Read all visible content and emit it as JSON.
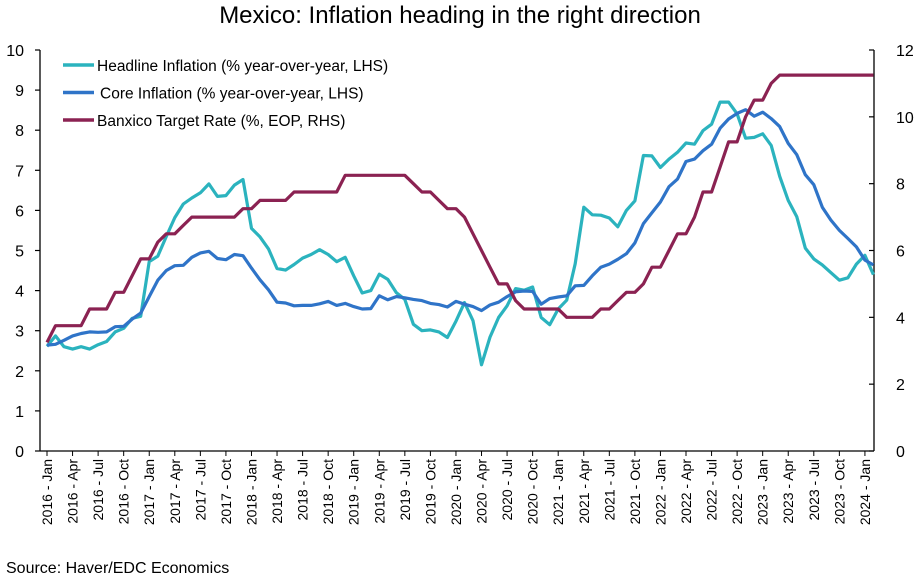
{
  "chart_data": {
    "type": "line",
    "title": "Mexico: Inflation heading in the right direction",
    "source": "Source: Haver/EDC Economics",
    "x_start": "2016-01",
    "x_end": "2024-02",
    "x_frequency": "monthly",
    "x_tick_labels": [
      "2016 - Jan",
      "2016 - Apr",
      "2016 - Jul",
      "2016 - Oct",
      "2017 - Jan",
      "2017 - Apr",
      "2017 - Jul",
      "2017 - Oct",
      "2018 - Jan",
      "2018 - Apr",
      "2018 - Jul",
      "2018 - Oct",
      "2019 - Jan",
      "2019 - Apr",
      "2019 - Jul",
      "2019 - Oct",
      "2020 - Jan",
      "2020 - Apr",
      "2020 - Jul",
      "2020 - Oct",
      "2021 - Jan",
      "2021 - Apr",
      "2021 - Jul",
      "2021 - Oct",
      "2022 - Jan",
      "2022 - Apr",
      "2022 - Jul",
      "2022 - Oct",
      "2023 - Jan",
      "2023 - Apr",
      "2023 - Jul",
      "2023 - Oct",
      "2024 - Jan"
    ],
    "y_left": {
      "range": [
        0,
        10
      ],
      "ticks": [
        0,
        1,
        2,
        3,
        4,
        5,
        6,
        7,
        8,
        9,
        10
      ]
    },
    "y_right": {
      "range": [
        0,
        12
      ],
      "ticks": [
        0,
        2,
        4,
        6,
        8,
        10,
        12
      ]
    },
    "grid": false,
    "legend_placement": "top-left",
    "series": [
      {
        "name": "Headline Inflation (% year-over-year, LHS)",
        "axis": "left",
        "color": "#2BB3BE",
        "values": [
          2.61,
          2.87,
          2.6,
          2.54,
          2.6,
          2.54,
          2.65,
          2.73,
          2.97,
          3.06,
          3.31,
          3.36,
          4.72,
          4.86,
          5.35,
          5.82,
          6.16,
          6.31,
          6.44,
          6.66,
          6.35,
          6.37,
          6.63,
          6.77,
          5.55,
          5.34,
          5.04,
          4.55,
          4.51,
          4.65,
          4.81,
          4.9,
          5.02,
          4.9,
          4.72,
          4.83,
          4.37,
          3.94,
          4.0,
          4.41,
          4.28,
          3.95,
          3.78,
          3.16,
          3.0,
          3.02,
          2.97,
          2.83,
          3.24,
          3.7,
          3.25,
          2.15,
          2.84,
          3.33,
          3.62,
          4.05,
          4.01,
          4.09,
          3.33,
          3.15,
          3.54,
          3.76,
          4.67,
          6.08,
          5.89,
          5.88,
          5.81,
          5.59,
          6.0,
          6.24,
          7.37,
          7.36,
          7.07,
          7.28,
          7.45,
          7.68,
          7.65,
          7.99,
          8.15,
          8.7,
          8.7,
          8.41,
          7.8,
          7.82,
          7.91,
          7.62,
          6.85,
          6.25,
          5.84,
          5.06,
          4.79,
          4.64,
          4.45,
          4.26,
          4.32,
          4.66,
          4.88,
          4.4
        ]
      },
      {
        "name": "Core Inflation (% year-over-year, LHS)",
        "axis": "left",
        "color": "#2F74C8",
        "values": [
          2.64,
          2.66,
          2.76,
          2.87,
          2.93,
          2.97,
          2.96,
          2.97,
          3.1,
          3.11,
          3.29,
          3.44,
          3.85,
          4.26,
          4.5,
          4.62,
          4.63,
          4.83,
          4.94,
          4.98,
          4.8,
          4.77,
          4.9,
          4.87,
          4.56,
          4.27,
          4.02,
          3.71,
          3.69,
          3.62,
          3.63,
          3.63,
          3.67,
          3.73,
          3.63,
          3.68,
          3.6,
          3.54,
          3.55,
          3.87,
          3.77,
          3.85,
          3.82,
          3.78,
          3.75,
          3.68,
          3.65,
          3.59,
          3.73,
          3.66,
          3.6,
          3.5,
          3.64,
          3.71,
          3.85,
          3.97,
          3.99,
          3.98,
          3.66,
          3.8,
          3.84,
          3.87,
          4.12,
          4.13,
          4.37,
          4.58,
          4.66,
          4.78,
          4.92,
          5.19,
          5.67,
          5.94,
          6.21,
          6.59,
          6.78,
          7.22,
          7.28,
          7.49,
          7.65,
          8.05,
          8.28,
          8.42,
          8.51,
          8.35,
          8.45,
          8.29,
          8.09,
          7.67,
          7.39,
          6.89,
          6.64,
          6.08,
          5.76,
          5.5,
          5.3,
          5.09,
          4.76,
          4.64
        ]
      },
      {
        "name": "Banxico Target Rate (%, EOP, RHS)",
        "axis": "right",
        "color": "#8B2252",
        "values": [
          3.25,
          3.75,
          3.75,
          3.75,
          3.75,
          4.25,
          4.25,
          4.25,
          4.75,
          4.75,
          5.25,
          5.75,
          5.75,
          6.25,
          6.5,
          6.5,
          6.75,
          7.0,
          7.0,
          7.0,
          7.0,
          7.0,
          7.0,
          7.25,
          7.25,
          7.5,
          7.5,
          7.5,
          7.5,
          7.75,
          7.75,
          7.75,
          7.75,
          7.75,
          7.75,
          8.25,
          8.25,
          8.25,
          8.25,
          8.25,
          8.25,
          8.25,
          8.25,
          8.0,
          7.75,
          7.75,
          7.5,
          7.25,
          7.25,
          7.0,
          6.5,
          6.0,
          5.5,
          5.0,
          5.0,
          4.5,
          4.25,
          4.25,
          4.25,
          4.25,
          4.25,
          4.0,
          4.0,
          4.0,
          4.0,
          4.25,
          4.25,
          4.5,
          4.75,
          4.75,
          5.0,
          5.5,
          5.5,
          6.0,
          6.5,
          6.5,
          7.0,
          7.75,
          7.75,
          8.5,
          9.25,
          9.25,
          10.0,
          10.5,
          10.5,
          11.0,
          11.25,
          11.25,
          11.25,
          11.25,
          11.25,
          11.25,
          11.25,
          11.25,
          11.25,
          11.25,
          11.25,
          11.25
        ]
      }
    ]
  }
}
